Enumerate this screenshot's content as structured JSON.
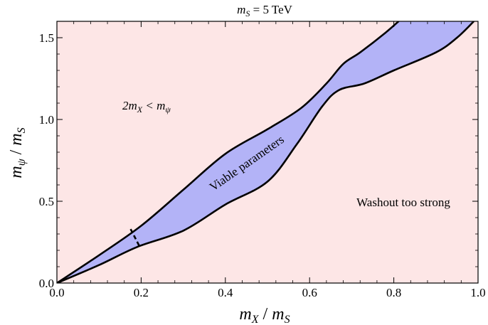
{
  "chart_data": {
    "type": "area",
    "title": "m_S = 5 TeV",
    "xlabel": "m_X / m_S",
    "ylabel": "m_ψ / m_S",
    "xlim": [
      0,
      1
    ],
    "ylim": [
      0,
      1.6
    ],
    "x_ticks": [
      0.0,
      0.2,
      0.4,
      0.6,
      0.8,
      1.0
    ],
    "y_ticks": [
      0.0,
      0.5,
      1.0,
      1.5
    ],
    "x_tick_labels": [
      "0.0",
      "0.2",
      "0.4",
      "0.6",
      "0.8",
      "1.0"
    ],
    "y_tick_labels": [
      "0.0",
      "0.5",
      "1.0",
      "1.5"
    ],
    "grid": false,
    "background_color": "#fde6e6",
    "band_color": "#b3b3f7",
    "series": [
      {
        "name": "Viable parameters",
        "upper": [
          [
            0,
            0
          ],
          [
            0.1,
            0.17
          ],
          [
            0.2,
            0.35
          ],
          [
            0.3,
            0.57
          ],
          [
            0.4,
            0.79
          ],
          [
            0.5,
            0.94
          ],
          [
            0.58,
            1.07
          ],
          [
            0.64,
            1.22
          ],
          [
            0.68,
            1.34
          ],
          [
            0.72,
            1.41
          ],
          [
            0.78,
            1.53
          ],
          [
            0.82,
            1.62
          ]
        ],
        "lower": [
          [
            0,
            0
          ],
          [
            0.1,
            0.11
          ],
          [
            0.19,
            0.22
          ],
          [
            0.3,
            0.32
          ],
          [
            0.4,
            0.48
          ],
          [
            0.5,
            0.62
          ],
          [
            0.57,
            0.85
          ],
          [
            0.63,
            1.08
          ],
          [
            0.67,
            1.18
          ],
          [
            0.73,
            1.22
          ],
          [
            0.8,
            1.3
          ],
          [
            0.9,
            1.41
          ],
          [
            0.95,
            1.5
          ],
          [
            0.99,
            1.6
          ]
        ]
      }
    ],
    "dashed_segment": [
      [
        0.175,
        0.33
      ],
      [
        0.195,
        0.23
      ]
    ],
    "annotations": {
      "upper_region": "2m_X < m_ψ",
      "band": "Viable parameters",
      "lower_region": "Washout too strong"
    }
  },
  "labels": {
    "title_m": "m",
    "title_sub": "S",
    "title_rest": " = 5 TeV",
    "xlabel_m1": "m",
    "xlabel_sub1": "X",
    "xlabel_slash": " / ",
    "xlabel_m2": "m",
    "xlabel_sub2": "S",
    "ylabel_m1": "m",
    "ylabel_sub1": "ψ",
    "ylabel_slash": " / ",
    "ylabel_m2": "m",
    "ylabel_sub2": "S",
    "upper_2m": "2m",
    "upper_sub_x": "X",
    "upper_lt": " < m",
    "upper_sub_psi": "ψ",
    "band_label": "Viable parameters",
    "lower_label": "Washout too strong"
  }
}
